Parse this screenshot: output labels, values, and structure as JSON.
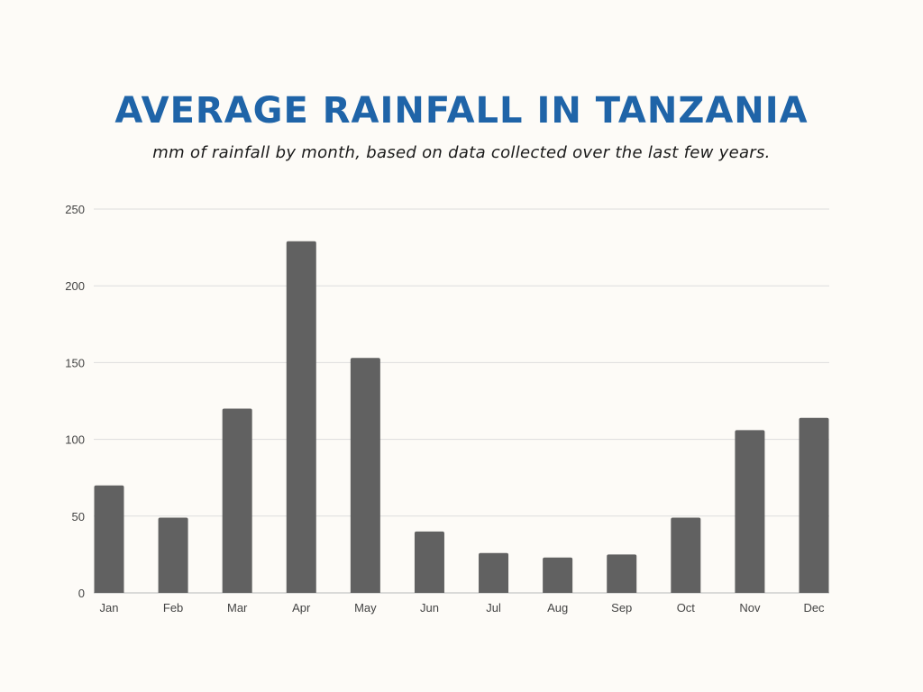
{
  "header": {
    "title": "AVERAGE RAINFALL IN TANZANIA",
    "subtitle": "mm of rainfall by month, based on data collected over the last few years."
  },
  "colors": {
    "background": "#fdfbf7",
    "title": "#1f64a8",
    "bar": "#616161",
    "grid": "#dddddd"
  },
  "chart_data": {
    "type": "bar",
    "title": "AVERAGE RAINFALL IN TANZANIA",
    "subtitle": "mm of rainfall by month, based on data collected over the last few years.",
    "xlabel": "",
    "ylabel": "",
    "categories": [
      "Jan",
      "Feb",
      "Mar",
      "Apr",
      "May",
      "Jun",
      "Jul",
      "Aug",
      "Sep",
      "Oct",
      "Nov",
      "Dec"
    ],
    "values": [
      70,
      49,
      120,
      229,
      153,
      40,
      26,
      23,
      25,
      49,
      106,
      114
    ],
    "ylim": [
      0,
      250
    ],
    "yticks": [
      0,
      50,
      100,
      150,
      200,
      250
    ],
    "grid": true,
    "legend": "none"
  }
}
